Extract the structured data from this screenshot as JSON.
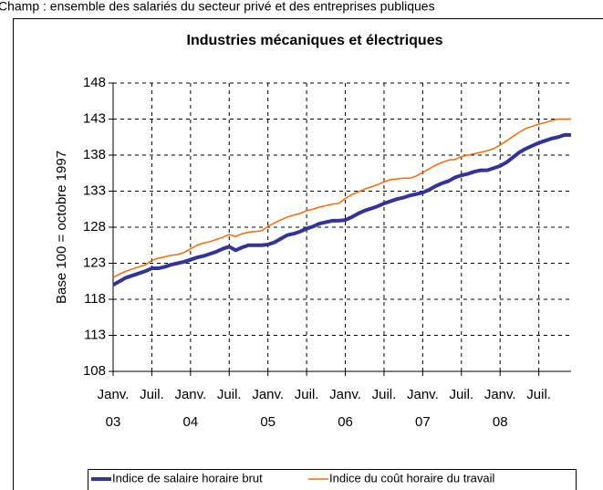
{
  "note_text": "Champ : ensemble des salariés du secteur privé et des entreprises publiques",
  "chart_data": {
    "type": "line",
    "title": "Industries mécaniques et électriques",
    "y_label": "Base 100 = octobre 1997",
    "categories": [
      "Janv.",
      null,
      null,
      null,
      null,
      null,
      "Juil.",
      null,
      null,
      null,
      null,
      null,
      "Janv.",
      null,
      null,
      null,
      null,
      null,
      "Juil.",
      null,
      null,
      null,
      null,
      null,
      "Janv.",
      null,
      null,
      null,
      null,
      null,
      "Juil.",
      null,
      null,
      null,
      null,
      null,
      "Janv.",
      null,
      null,
      null,
      null,
      null,
      "Juil.",
      null,
      null,
      null,
      null,
      null,
      "Janv.",
      null,
      null,
      null,
      null,
      null,
      "Juil.",
      null,
      null,
      null,
      null,
      null,
      "Janv.",
      null,
      null,
      null,
      null,
      null,
      "Juil.",
      null,
      null,
      null,
      null,
      null
    ],
    "x_group_labels": [
      "03",
      "04",
      "05",
      "06",
      "07",
      "08"
    ],
    "ylim": [
      108,
      148
    ],
    "yticks": [
      108,
      113,
      118,
      123,
      128,
      133,
      138,
      143,
      148
    ],
    "grid": true,
    "legend": "bottom",
    "series": [
      {
        "name": "Indice de salaire horaire brut",
        "color": "#333399",
        "width": 4,
        "values": [
          120.0,
          120.5,
          121.0,
          121.3,
          121.6,
          121.9,
          122.3,
          122.3,
          122.5,
          122.8,
          123.0,
          123.2,
          123.5,
          123.8,
          124.0,
          124.3,
          124.6,
          125.0,
          125.3,
          124.8,
          125.2,
          125.5,
          125.5,
          125.5,
          125.6,
          125.9,
          126.4,
          126.9,
          127.1,
          127.4,
          127.8,
          128.1,
          128.5,
          128.7,
          128.9,
          128.9,
          129.0,
          129.4,
          129.9,
          130.3,
          130.6,
          130.9,
          131.3,
          131.6,
          131.9,
          132.1,
          132.4,
          132.6,
          132.8,
          133.2,
          133.7,
          134.1,
          134.4,
          134.9,
          135.2,
          135.4,
          135.7,
          135.9,
          135.9,
          136.2,
          136.5,
          137.0,
          137.7,
          138.4,
          138.9,
          139.3,
          139.7,
          140.0,
          140.3,
          140.5,
          140.8,
          140.8
        ]
      },
      {
        "name": "Indice du coût horaire du travail",
        "color": "#ff6600",
        "width": 1.5,
        "values": [
          121.0,
          121.5,
          121.9,
          122.2,
          122.5,
          122.8,
          123.4,
          123.7,
          123.9,
          124.1,
          124.2,
          124.5,
          125.0,
          125.5,
          125.8,
          126.0,
          126.3,
          126.6,
          127.0,
          126.7,
          127.1,
          127.3,
          127.4,
          127.5,
          128.1,
          128.6,
          129.0,
          129.4,
          129.7,
          129.9,
          130.3,
          130.5,
          130.8,
          131.0,
          131.2,
          131.3,
          132.0,
          132.5,
          132.9,
          133.3,
          133.6,
          133.9,
          134.3,
          134.6,
          134.7,
          134.8,
          134.8,
          135.1,
          135.6,
          136.1,
          136.6,
          137.0,
          137.3,
          137.4,
          137.8,
          138.0,
          138.2,
          138.4,
          138.6,
          138.9,
          139.4,
          140.0,
          140.6,
          141.2,
          141.7,
          142.0,
          142.3,
          142.5,
          142.8,
          143.0,
          143.0,
          143.0
        ]
      }
    ]
  }
}
